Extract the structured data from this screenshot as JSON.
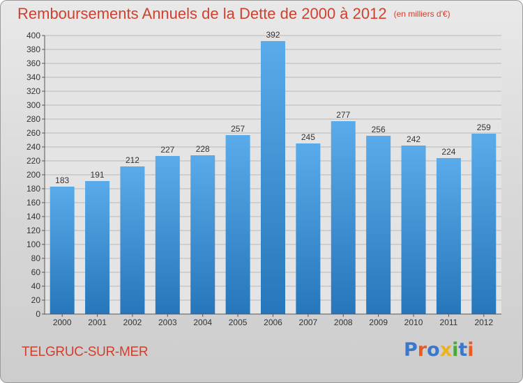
{
  "header": {
    "title": "Remboursements Annuels de la Dette de 2000 à 2012",
    "unit": "(en milliers d'€)"
  },
  "footer": {
    "town": "TELGRUC-SUR-MER",
    "brand": "Proxiti",
    "brand_colors": [
      "#3b78c9",
      "#e95b1f",
      "#3b78c9",
      "#e9b21f",
      "#4aa83a",
      "#3b78c9",
      "#e95b1f"
    ]
  },
  "chart_data": {
    "type": "bar",
    "categories": [
      "2000",
      "2001",
      "2002",
      "2003",
      "2004",
      "2005",
      "2006",
      "2007",
      "2008",
      "2009",
      "2010",
      "2011",
      "2012"
    ],
    "values": [
      183,
      191,
      212,
      227,
      228,
      257,
      392,
      245,
      277,
      256,
      242,
      224,
      259
    ],
    "ylim": [
      0,
      400
    ],
    "ytick_step": 20,
    "grid": true,
    "bar_color": "#4f9fe1",
    "bar_color_dark": "#2878bd",
    "title": "Remboursements Annuels de la Dette de 2000 à 2012",
    "xlabel": "",
    "ylabel": ""
  }
}
